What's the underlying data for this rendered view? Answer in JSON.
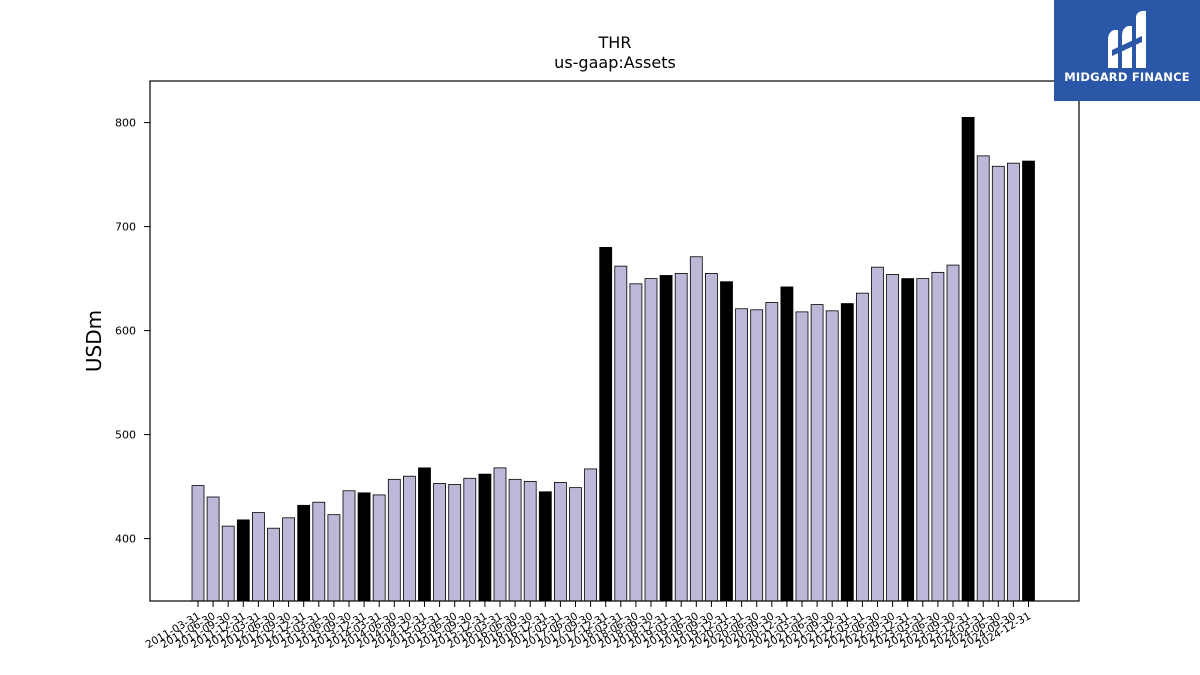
{
  "logo": {
    "text": "MIDGARD FINANCE"
  },
  "colors": {
    "normal_bar": "#bcb9d8",
    "highlight_bar": "#000000",
    "axis": "#000000",
    "logo_bg": "#2b57a8"
  },
  "chart_data": {
    "type": "bar",
    "title": "THR",
    "subtitle": "us-gaap:Assets",
    "xlabel": "",
    "ylabel": "USDm",
    "ylim": [
      340,
      840
    ],
    "yticks": [
      400,
      500,
      600,
      700,
      800
    ],
    "grid": false,
    "legend": "none",
    "highlight_rule": "December 31 fiscal year-end periods shown in black",
    "categories": [
      "2011-03-31",
      "2011-06-30",
      "2011-09-30",
      "2011-12-31",
      "2012-03-31",
      "2012-06-30",
      "2012-09-30",
      "2012-12-31",
      "2013-03-31",
      "2013-06-30",
      "2013-09-30",
      "2013-12-31",
      "2014-03-31",
      "2014-06-30",
      "2014-09-30",
      "2014-12-31",
      "2015-03-31",
      "2015-06-30",
      "2015-09-30",
      "2015-12-31",
      "2016-03-31",
      "2016-06-30",
      "2016-09-30",
      "2016-12-31",
      "2017-03-31",
      "2017-06-30",
      "2017-09-30",
      "2017-12-31",
      "2018-03-31",
      "2018-06-30",
      "2018-09-30",
      "2018-12-31",
      "2019-03-31",
      "2019-06-30",
      "2019-09-30",
      "2019-12-31",
      "2020-03-31",
      "2020-06-30",
      "2020-09-30",
      "2020-12-31",
      "2021-03-31",
      "2021-06-30",
      "2021-09-30",
      "2021-12-31",
      "2022-03-31",
      "2022-06-30",
      "2022-09-30",
      "2022-12-31",
      "2023-03-31",
      "2023-06-30",
      "2023-09-30",
      "2023-12-31",
      "2024-03-31",
      "2024-06-30",
      "2024-09-30",
      "2024-12-31"
    ],
    "values": [
      451,
      440,
      412,
      418,
      425,
      410,
      420,
      432,
      435,
      423,
      446,
      444,
      442,
      457,
      460,
      468,
      453,
      452,
      458,
      462,
      468,
      457,
      455,
      445,
      454,
      449,
      467,
      680,
      662,
      645,
      650,
      653,
      655,
      671,
      655,
      647,
      621,
      620,
      627,
      642,
      618,
      625,
      619,
      626,
      636,
      661,
      654,
      650,
      650,
      656,
      663,
      805,
      768,
      758,
      761,
      763
    ],
    "highlight": [
      false,
      false,
      false,
      true,
      false,
      false,
      false,
      true,
      false,
      false,
      false,
      true,
      false,
      false,
      false,
      true,
      false,
      false,
      false,
      true,
      false,
      false,
      false,
      true,
      false,
      false,
      false,
      true,
      false,
      false,
      false,
      true,
      false,
      false,
      false,
      true,
      false,
      false,
      false,
      true,
      false,
      false,
      false,
      true,
      false,
      false,
      false,
      true,
      false,
      false,
      false,
      true,
      false,
      false,
      false,
      true
    ]
  }
}
